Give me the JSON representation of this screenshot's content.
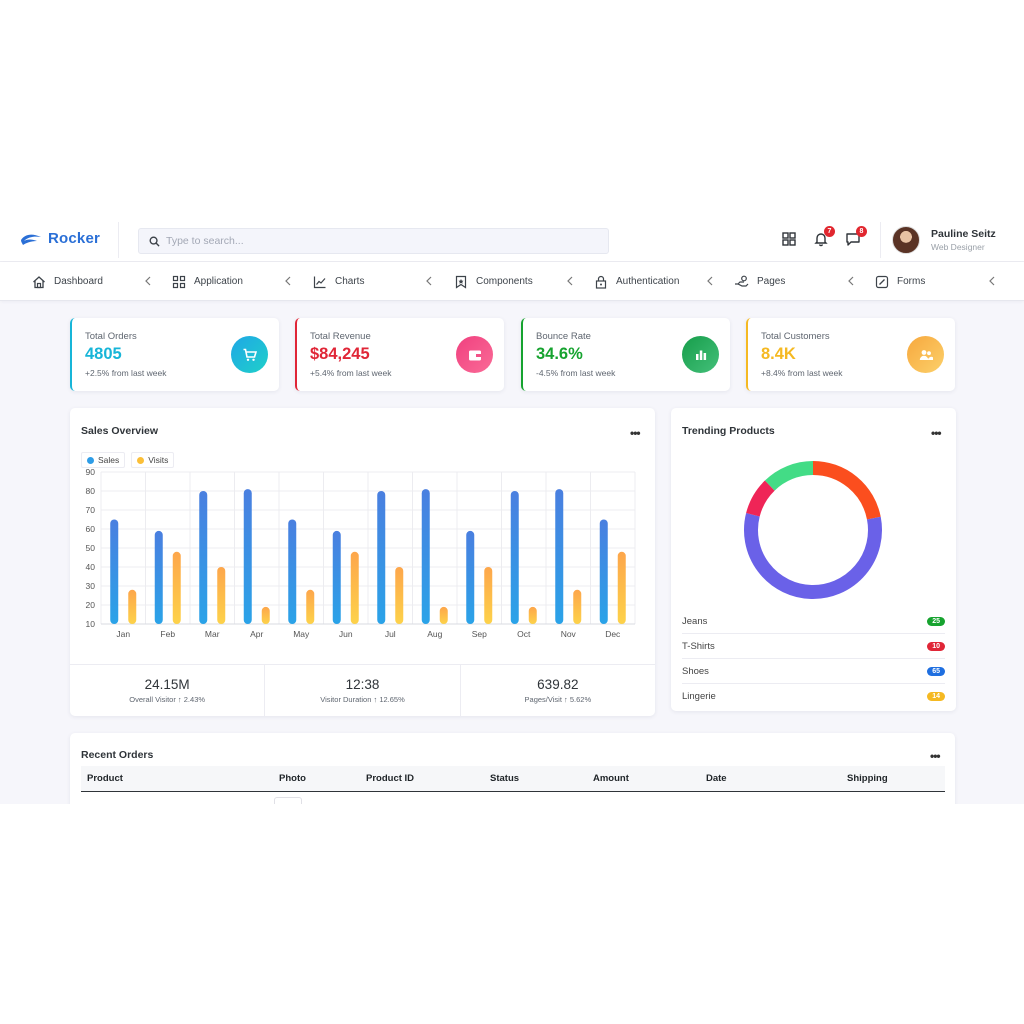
{
  "brand": {
    "name": "Rocker"
  },
  "search": {
    "placeholder": "Type to search..."
  },
  "header": {
    "notifications_count": "7",
    "messages_count": "8",
    "user_name": "Pauline Seitz",
    "user_role": "Web Designer"
  },
  "nav": [
    {
      "label": "Dashboard",
      "icon": "home-icon"
    },
    {
      "label": "Application",
      "icon": "grid-icon"
    },
    {
      "label": "Charts",
      "icon": "line-chart-icon"
    },
    {
      "label": "Components",
      "icon": "bookmark-icon"
    },
    {
      "label": "Authentication",
      "icon": "lock-icon"
    },
    {
      "label": "Pages",
      "icon": "hand-icon"
    },
    {
      "label": "Forms",
      "icon": "edit-icon"
    }
  ],
  "stats": [
    {
      "label": "Total Orders",
      "value": "4805",
      "sub": "+2.5% from last week",
      "color": "#17b5d8",
      "icon": "cart-icon"
    },
    {
      "label": "Total Revenue",
      "value": "$84,245",
      "sub": "+5.4% from last week",
      "color": "#e02637",
      "icon": "wallet-icon"
    },
    {
      "label": "Bounce Rate",
      "value": "34.6%",
      "sub": "-4.5% from last week",
      "color": "#16a32f",
      "icon": "bar-chart-icon"
    },
    {
      "label": "Total Customers",
      "value": "8.4K",
      "sub": "+8.4% from last week",
      "color": "#f5b922",
      "icon": "users-icon"
    }
  ],
  "sales": {
    "title": "Sales Overview",
    "summary": [
      {
        "value": "24.15M",
        "label": "Overall Visitor",
        "change": "2.43%"
      },
      {
        "value": "12:38",
        "label": "Visitor Duration",
        "change": "12.65%"
      },
      {
        "value": "639.82",
        "label": "Pages/Visit",
        "change": "5.62%"
      }
    ]
  },
  "chart_data": {
    "type": "bar",
    "categories": [
      "Jan",
      "Feb",
      "Mar",
      "Apr",
      "May",
      "Jun",
      "Jul",
      "Aug",
      "Sep",
      "Oct",
      "Nov",
      "Dec"
    ],
    "series": [
      {
        "name": "Sales",
        "color": "#3b8ee4",
        "values": [
          65,
          59,
          80,
          81,
          65,
          59,
          80,
          81,
          59,
          80,
          81,
          65
        ]
      },
      {
        "name": "Visits",
        "color": "#fbbf38",
        "values": [
          28,
          48,
          40,
          19,
          28,
          48,
          40,
          19,
          40,
          19,
          28,
          48
        ]
      }
    ],
    "ylim": [
      10,
      90
    ],
    "yticks": [
      10,
      20,
      30,
      40,
      50,
      60,
      70,
      80,
      90
    ],
    "grid": true,
    "legend": "top-left"
  },
  "trending": {
    "title": "Trending Products",
    "items": [
      {
        "name": "Jeans",
        "count": "25",
        "color": "#17a32f"
      },
      {
        "name": "T-Shirts",
        "count": "10",
        "color": "#e02637"
      },
      {
        "name": "Shoes",
        "count": "65",
        "color": "#1f6fe0"
      },
      {
        "name": "Lingerie",
        "count": "14",
        "color": "#f5b922"
      }
    ],
    "donut": [
      {
        "name": "Jeans",
        "value": 25,
        "color": "#fb4e1e"
      },
      {
        "name": "Shoes",
        "value": 65,
        "color": "#6a61e8"
      },
      {
        "name": "T-Shirts",
        "value": 10,
        "color": "#ef2557"
      },
      {
        "name": "Lingerie",
        "value": 14,
        "color": "#43dc86"
      }
    ]
  },
  "orders": {
    "title": "Recent Orders",
    "columns": [
      "Product",
      "Photo",
      "Product ID",
      "Status",
      "Amount",
      "Date",
      "Shipping"
    ]
  }
}
